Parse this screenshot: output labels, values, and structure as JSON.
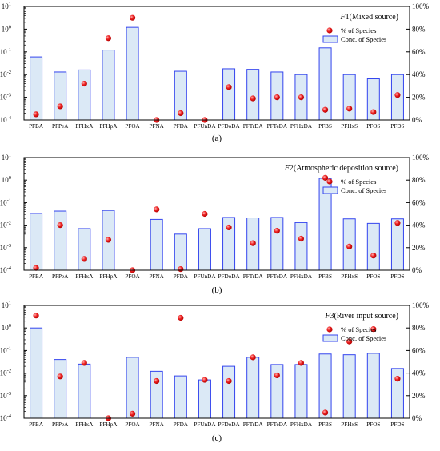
{
  "figure": {
    "panels": [
      {
        "label": "(a)",
        "title_var": "F",
        "title_num": "1",
        "title_rest": "(Mixed source)"
      },
      {
        "label": "(b)",
        "title_var": "F",
        "title_num": "2",
        "title_rest": "(Atmospheric deposition source)"
      },
      {
        "label": "(c)",
        "title_var": "F",
        "title_num": "3",
        "title_rest": "(River input source)"
      }
    ],
    "legend": {
      "dots": "% of Species",
      "bars": "Conc. of Species"
    },
    "left_ticks": [
      "10",
      "10",
      "10",
      "10",
      "10",
      "10",
      "10"
    ],
    "left_exps": [
      "-4",
      "-3",
      "-2",
      "-1",
      "0",
      "1",
      "2"
    ],
    "right_ticks": [
      "0%",
      "20%",
      "40%",
      "60%",
      "80%",
      "100%"
    ]
  },
  "chart_data": [
    {
      "type": "bar",
      "title": "F1(Mixed source)",
      "categories": [
        "PFBA",
        "PFPeA",
        "PFHxA",
        "PFHpA",
        "PFOA",
        "PFNA",
        "PFDA",
        "PFUnDA",
        "PFDoDA",
        "PFTrDA",
        "PFTeDA",
        "PFHxDA",
        "PFBS",
        "PFHxS",
        "PFOS",
        "PFDS"
      ],
      "y_scale": "log",
      "ylim": [
        0.0001,
        10
      ],
      "y2lim": [
        0,
        100
      ],
      "series": [
        {
          "name": "Conc. of Species",
          "type": "bar",
          "axis": "left",
          "values": [
            0.06,
            0.013,
            0.016,
            0.12,
            1.2,
            null,
            0.014,
            null,
            0.018,
            0.017,
            0.013,
            0.01,
            0.15,
            0.01,
            0.0065,
            0.01
          ]
        },
        {
          "name": "% of Species",
          "type": "scatter",
          "axis": "right",
          "values": [
            5,
            12,
            32,
            72,
            90,
            0,
            6,
            0,
            29,
            19,
            20,
            20,
            9,
            10,
            7,
            22
          ]
        }
      ]
    },
    {
      "type": "bar",
      "title": "F2(Atmospheric deposition source)",
      "categories": [
        "PFBA",
        "PFPeA",
        "PFHxA",
        "PFHpA",
        "PFOA",
        "PFNA",
        "PFDA",
        "PFUnDA",
        "PFDoDA",
        "PFTrDA",
        "PFTeDA",
        "PFHxDA",
        "PFBS",
        "PFHxS",
        "PFOS",
        "PFDS"
      ],
      "y_scale": "log",
      "ylim": [
        0.0001,
        10
      ],
      "y2lim": [
        0,
        100
      ],
      "series": [
        {
          "name": "Conc. of Species",
          "type": "bar",
          "axis": "left",
          "values": [
            0.033,
            0.042,
            0.007,
            0.045,
            null,
            0.018,
            0.004,
            0.007,
            0.022,
            0.021,
            0.022,
            0.013,
            1.2,
            0.019,
            0.012,
            0.019
          ]
        },
        {
          "name": "% of Species",
          "type": "scatter",
          "axis": "right",
          "values": [
            2,
            40,
            10,
            27,
            0,
            54,
            1,
            50,
            38,
            24,
            35,
            28,
            82,
            21,
            13,
            42
          ]
        }
      ]
    },
    {
      "type": "bar",
      "title": "F3(River input source)",
      "categories": [
        "PFBA",
        "PFPeA",
        "PFHxA",
        "PFHpA",
        "PFOA",
        "PFNA",
        "PFDA",
        "PFUnDA",
        "PFDoDA",
        "PFTrDA",
        "PFTeDA",
        "PFHxDA",
        "PFBS",
        "PFHxS",
        "PFOS",
        "PFDS"
      ],
      "y_scale": "log",
      "ylim": [
        0.0001,
        10
      ],
      "y2lim": [
        0,
        100
      ],
      "series": [
        {
          "name": "Conc. of Species",
          "type": "bar",
          "axis": "left",
          "values": [
            1.0,
            0.04,
            0.025,
            null,
            0.05,
            0.012,
            0.0075,
            0.005,
            0.02,
            0.05,
            0.024,
            0.024,
            0.07,
            0.065,
            0.075,
            0.016
          ]
        },
        {
          "name": "% of Species",
          "type": "scatter",
          "axis": "right",
          "values": [
            91,
            37,
            49,
            0,
            4,
            33,
            89,
            34,
            33,
            54,
            38,
            49,
            5,
            68,
            79,
            35
          ]
        }
      ]
    }
  ]
}
